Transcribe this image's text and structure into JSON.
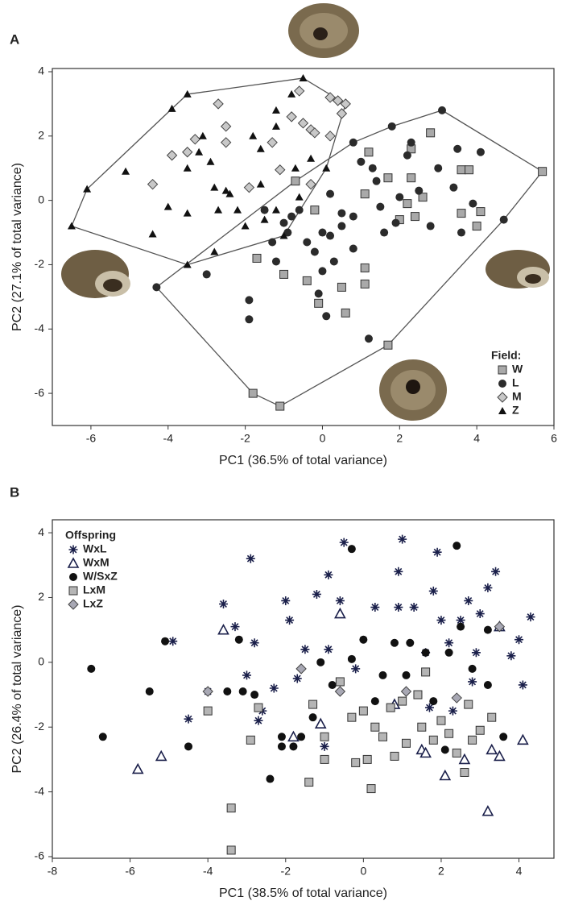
{
  "chart_data": [
    {
      "type": "scatter",
      "title": "A",
      "x_label": "PC1 (36.5% of total variance)",
      "y_label": "PC2 (27.1% of total variance)",
      "xlim": [
        -7,
        6
      ],
      "ylim": [
        -7,
        4.1
      ],
      "xticks": [
        -6,
        -4,
        -2,
        0,
        2,
        4,
        6
      ],
      "yticks": [
        -6,
        -4,
        -2,
        0,
        2,
        4
      ],
      "legend_title": "Field:",
      "legend": "lower right",
      "hulls": [
        [
          0,
          1
        ],
        [
          2,
          3
        ]
      ],
      "series": [
        {
          "name": "W",
          "color": "#a9a9a9",
          "marker": "square",
          "x": [
            -1.7,
            -1.8,
            -1.1,
            -1.0,
            -0.4,
            -0.1,
            0.5,
            0.6,
            1.1,
            1.1,
            1.1,
            1.2,
            1.7,
            1.7,
            2.2,
            2.3,
            2.4,
            2.8,
            2.3,
            3.6,
            3.8,
            3.6,
            4.1,
            4.0,
            5.7,
            2.0,
            2.6,
            -0.7,
            -0.2
          ],
          "y": [
            -1.8,
            -6.0,
            -6.4,
            -2.3,
            -2.5,
            -3.2,
            -2.7,
            -3.5,
            -2.1,
            -2.6,
            0.2,
            1.5,
            0.7,
            -4.5,
            -0.1,
            0.7,
            -0.5,
            2.1,
            1.6,
            0.95,
            0.95,
            -0.4,
            -0.35,
            -0.8,
            0.9,
            -0.6,
            0.1,
            0.6,
            -0.3
          ]
        },
        {
          "name": "L",
          "color": "#2b2b2b",
          "marker": "circle",
          "x": [
            -4.3,
            -3.0,
            -1.9,
            -1.9,
            -1.5,
            -1.3,
            -1.2,
            -0.9,
            -0.8,
            -0.6,
            -0.4,
            -0.2,
            0.0,
            0.2,
            0.3,
            0.0,
            -0.1,
            0.1,
            0.5,
            0.8,
            0.8,
            1.0,
            1.3,
            1.5,
            1.6,
            1.9,
            2.0,
            1.8,
            2.2,
            2.5,
            2.8,
            3.1,
            3.0,
            3.4,
            3.6,
            3.9,
            4.7,
            4.1,
            0.8,
            1.2,
            0.5,
            2.3,
            3.5,
            1.4,
            0.2,
            -1.0
          ],
          "y": [
            -2.7,
            -2.3,
            -3.7,
            -3.1,
            -0.3,
            -1.3,
            -1.9,
            -1.0,
            -0.5,
            -0.3,
            -1.3,
            -1.6,
            -1.0,
            -1.1,
            -1.9,
            -2.2,
            -2.9,
            -3.6,
            -0.8,
            -0.5,
            -1.5,
            1.2,
            1.0,
            -0.2,
            -1.0,
            -0.7,
            0.1,
            2.3,
            1.4,
            0.3,
            -0.8,
            2.8,
            1.0,
            0.4,
            -1.0,
            -0.1,
            -0.6,
            1.5,
            1.8,
            -4.3,
            -0.4,
            1.8,
            1.6,
            0.6,
            0.2,
            -0.7
          ]
        },
        {
          "name": "M",
          "color": "#c8c8c8",
          "marker": "diamond",
          "x": [
            -4.4,
            -3.9,
            -2.5,
            -2.5,
            -3.3,
            -2.7,
            -1.9,
            -1.1,
            -0.6,
            -1.3,
            -0.8,
            -0.5,
            -0.3,
            0.2,
            0.4,
            0.6,
            0.5,
            -0.2,
            0.2,
            -0.3,
            -3.5
          ],
          "y": [
            0.5,
            1.4,
            2.3,
            1.8,
            1.9,
            3.0,
            0.4,
            0.95,
            3.4,
            1.8,
            2.6,
            2.4,
            2.2,
            3.2,
            3.1,
            3.0,
            2.7,
            2.1,
            2.0,
            0.5,
            1.5
          ]
        },
        {
          "name": "Z",
          "color": "#111111",
          "marker": "triangle",
          "x": [
            -6.5,
            -6.1,
            -5.1,
            -4.4,
            -3.9,
            -3.5,
            -3.1,
            -3.2,
            -2.9,
            -2.8,
            -3.5,
            -3.5,
            -2.8,
            -2.0,
            -2.5,
            -2.2,
            -2.7,
            -1.6,
            -1.2,
            -1.8,
            -1.2,
            -1.2,
            -1.6,
            -0.8,
            -0.5,
            -0.7,
            -0.3,
            -1.0,
            -0.6,
            -1.5,
            0.1,
            -2.4,
            -4.0,
            -3.5
          ],
          "y": [
            -0.8,
            0.35,
            0.9,
            -1.05,
            2.85,
            3.3,
            2.0,
            1.5,
            1.2,
            0.4,
            -0.4,
            -2.0,
            -1.6,
            -0.8,
            0.3,
            -0.3,
            -0.3,
            0.5,
            -0.3,
            2.0,
            2.3,
            2.8,
            1.6,
            3.3,
            3.8,
            1.0,
            1.3,
            -1.1,
            0.1,
            -0.6,
            1.0,
            0.2,
            -0.2,
            1.0
          ]
        }
      ]
    },
    {
      "type": "scatter",
      "title": "B",
      "x_label": "PC1 (38.5% of total variance)",
      "y_label": "PC2 (26.4% of total variance)",
      "xlim": [
        -8,
        4.9
      ],
      "ylim": [
        -6.05,
        4.4
      ],
      "xticks": [
        -8,
        -6,
        -4,
        -2,
        0,
        2,
        4
      ],
      "yticks": [
        -6,
        -4,
        -2,
        0,
        2,
        4
      ],
      "legend_title": "Offspring",
      "legend": "upper left",
      "series": [
        {
          "name": "WxL",
          "color": "#1a1f4a",
          "marker": "asterisk",
          "x": [
            -4.9,
            -4.0,
            -4.5,
            -3.6,
            -3.3,
            -2.9,
            -2.8,
            -3.0,
            -2.6,
            -2.3,
            -2.0,
            -1.9,
            -1.5,
            -1.2,
            -0.9,
            -0.9,
            -1.0,
            -0.5,
            -0.6,
            -0.2,
            0.3,
            0.9,
            1.0,
            0.9,
            1.3,
            1.6,
            1.8,
            2.0,
            2.2,
            2.5,
            2.7,
            2.9,
            3.0,
            3.2,
            3.4,
            3.8,
            4.1,
            4.3,
            4.0,
            2.3,
            1.7,
            2.8,
            1.9,
            -1.7,
            -2.7
          ],
          "y": [
            0.65,
            -0.9,
            -1.75,
            1.8,
            1.1,
            3.2,
            0.6,
            -0.4,
            -1.5,
            -0.8,
            1.9,
            1.3,
            0.4,
            2.1,
            0.4,
            2.7,
            -2.6,
            3.7,
            1.9,
            -0.2,
            1.7,
            1.7,
            3.8,
            2.8,
            1.7,
            0.3,
            2.2,
            1.3,
            0.6,
            1.3,
            1.9,
            0.3,
            1.5,
            2.3,
            2.8,
            0.2,
            -0.7,
            1.4,
            0.7,
            -1.5,
            -1.4,
            -0.6,
            3.4,
            -0.5,
            -1.8
          ]
        },
        {
          "name": "WxM",
          "color": "#1a1f4a",
          "marker": "open-triangle",
          "x": [
            -5.8,
            -5.2,
            -3.6,
            -1.8,
            -1.1,
            0.8,
            1.5,
            1.6,
            2.1,
            2.6,
            3.3,
            3.5,
            3.5,
            4.1,
            3.2,
            -0.6
          ],
          "y": [
            -3.3,
            -2.9,
            1.0,
            -2.3,
            -1.9,
            -1.3,
            -2.7,
            -2.8,
            -3.5,
            -3.0,
            -2.7,
            -2.9,
            1.1,
            -2.4,
            -4.6,
            1.5
          ]
        },
        {
          "name": "W/SxZ",
          "color": "#111111",
          "marker": "circle",
          "x": [
            -7.0,
            -6.7,
            -5.5,
            -5.1,
            -4.5,
            -3.5,
            -3.1,
            -3.2,
            -2.8,
            -2.4,
            -2.1,
            -2.1,
            -1.8,
            -1.6,
            -1.3,
            -1.1,
            -0.8,
            -0.3,
            -0.3,
            0.3,
            0.5,
            0.8,
            1.1,
            1.2,
            1.6,
            2.1,
            2.2,
            2.4,
            2.8,
            3.2,
            3.6,
            3.2,
            1.8,
            2.5,
            0.0
          ],
          "y": [
            -0.2,
            -2.3,
            -0.9,
            0.65,
            -2.6,
            -0.9,
            -0.9,
            0.7,
            -1.0,
            -3.6,
            -2.3,
            -2.6,
            -2.6,
            -2.3,
            -1.7,
            0.0,
            -0.7,
            3.5,
            0.1,
            -1.2,
            -0.4,
            0.6,
            -0.4,
            0.6,
            0.3,
            -2.7,
            0.3,
            3.6,
            -0.2,
            -0.7,
            -2.3,
            1.0,
            -1.2,
            1.1,
            0.7
          ]
        },
        {
          "name": "LxM",
          "color": "#b5b5b5",
          "marker": "square",
          "x": [
            -4.0,
            -3.4,
            -3.4,
            -2.9,
            -2.7,
            -1.4,
            -1.3,
            -1.0,
            -1.0,
            -0.6,
            -0.3,
            -0.2,
            0.0,
            0.3,
            0.1,
            0.2,
            0.5,
            0.7,
            0.8,
            1.1,
            1.4,
            1.5,
            1.8,
            2.0,
            2.2,
            2.4,
            2.6,
            2.8,
            3.0,
            3.3,
            1.6,
            1.0,
            2.7
          ],
          "y": [
            -1.5,
            -4.5,
            -5.8,
            -2.4,
            -1.4,
            -3.7,
            -1.3,
            -2.3,
            -3.0,
            -0.6,
            -1.7,
            -3.1,
            -1.5,
            -2.0,
            -3.0,
            -3.9,
            -2.3,
            -1.4,
            -2.9,
            -2.5,
            -1.0,
            -2.0,
            -2.4,
            -1.8,
            -2.2,
            -2.8,
            -3.4,
            -2.4,
            -2.1,
            -1.7,
            -0.3,
            -1.2,
            -1.3
          ]
        },
        {
          "name": "LxZ",
          "color": "#a8a8b4",
          "marker": "diamond",
          "x": [
            -4.0,
            -1.6,
            -0.6,
            1.1,
            3.5,
            2.4
          ],
          "y": [
            -0.9,
            -0.2,
            -0.9,
            -0.9,
            1.1,
            -1.1
          ]
        }
      ]
    }
  ]
}
